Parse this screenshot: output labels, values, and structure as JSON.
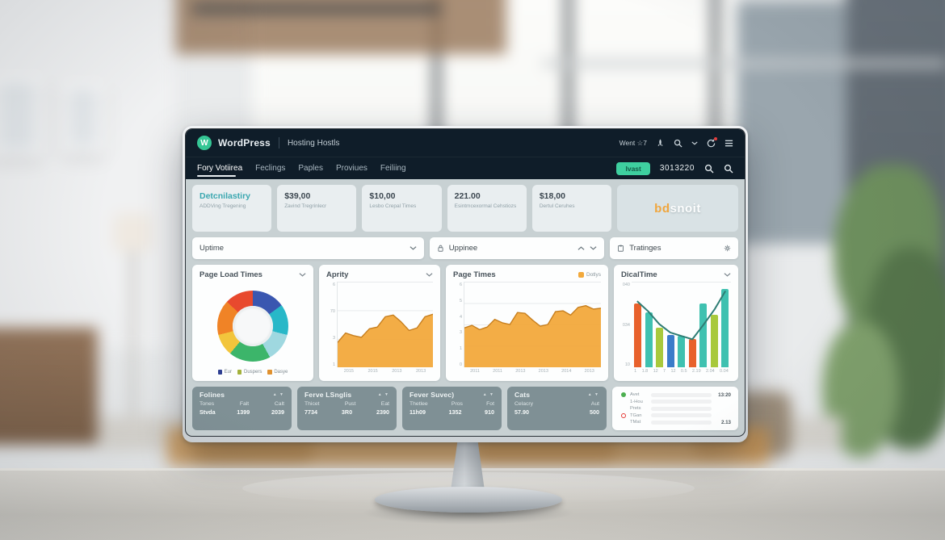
{
  "header": {
    "brand": "WordPress",
    "logo_glyph": "W",
    "product": "Hosting Hostls",
    "status": "Went ☆7"
  },
  "tabs": [
    {
      "label": "Fory Votiirea",
      "active": true
    },
    {
      "label": "Feclings",
      "active": false
    },
    {
      "label": "Paples",
      "active": false
    },
    {
      "label": "Proviues",
      "active": false
    },
    {
      "label": "Feiliing",
      "active": false
    }
  ],
  "toolbar": {
    "action_label": "Ivast",
    "account_number": "3013220"
  },
  "stats": [
    {
      "title": "Detcnilastiry",
      "subtitle": "ADDVing Tregening"
    },
    {
      "title": "$39,00",
      "subtitle": "Zavind Tregrinlecr"
    },
    {
      "title": "$10,00",
      "subtitle": "Lesbo Crepal Times"
    },
    {
      "title": "221.00",
      "subtitle": "Esintmcexormal Cehstiozs"
    },
    {
      "title": "$18,00",
      "subtitle": "Dertul Ceruhes"
    }
  ],
  "brand_card": {
    "highlight": "bd",
    "rest": "snoit"
  },
  "filters": [
    {
      "label": "Uptime"
    },
    {
      "label": "Uppinee"
    },
    {
      "label": "Tratinges"
    }
  ],
  "chart_data": [
    {
      "type": "pie",
      "title": "Page Load Times",
      "slices": [
        {
          "label": "Eur",
          "value": 15,
          "color": "#3a57b0"
        },
        {
          "label": "",
          "value": 14,
          "color": "#28b8c8"
        },
        {
          "label": "",
          "value": 13,
          "color": "#9fd8e0"
        },
        {
          "label": "Duspers",
          "value": 19,
          "color": "#3cb56a"
        },
        {
          "label": "",
          "value": 10,
          "color": "#f2c53c"
        },
        {
          "label": "Dasye",
          "value": 16,
          "color": "#f08326"
        },
        {
          "label": "",
          "value": 13,
          "color": "#e8492e"
        }
      ],
      "legend": [
        {
          "label": "Eur",
          "color": "#2e3f92"
        },
        {
          "label": "Duspers",
          "color": "#a3b13c"
        },
        {
          "label": "Dasye",
          "color": "#e0912f"
        }
      ]
    },
    {
      "type": "area",
      "title": "Aprity",
      "color": "#f2a93c",
      "stroke": "#c77f1f",
      "x": [
        "2015",
        "2015",
        "2013",
        "2013"
      ],
      "yticks": [
        "6",
        "70",
        "3",
        "1"
      ],
      "values": [
        29,
        40,
        37,
        35,
        45,
        47,
        59,
        61,
        53,
        43,
        46,
        59,
        62
      ],
      "ylim": [
        0,
        100
      ]
    },
    {
      "type": "area",
      "title": "Page Times",
      "legend_label": "Dotlys",
      "color": "#f2a93c",
      "stroke": "#c77f1f",
      "x": [
        "2011",
        "2011",
        "2013",
        "2013",
        "2014",
        "2013"
      ],
      "yticks": [
        "6",
        "5",
        "4",
        "3",
        "1",
        "0"
      ],
      "values": [
        46,
        49,
        44,
        47,
        56,
        52,
        50,
        64,
        63,
        55,
        48,
        50,
        65,
        66,
        61,
        70,
        72,
        68,
        69
      ],
      "ylim": [
        0,
        100
      ]
    },
    {
      "type": "bar",
      "title": "DicalTime",
      "yticks": [
        "040",
        "034",
        "10"
      ],
      "x": [
        "1",
        "1.8",
        "12",
        "7",
        "12",
        "0.5",
        "2.19",
        "2.04",
        "0.04"
      ],
      "bars": [
        {
          "value": 75,
          "color": "#e8612c"
        },
        {
          "value": 65,
          "color": "#3fc1b0"
        },
        {
          "value": 47,
          "color": "#a8c93c"
        },
        {
          "value": 38,
          "color": "#3a7cc9"
        },
        {
          "value": 37,
          "color": "#3fc1b0"
        },
        {
          "value": 33,
          "color": "#e8612c"
        },
        {
          "value": 75,
          "color": "#3fc1b0"
        },
        {
          "value": 62,
          "color": "#a8c93c"
        },
        {
          "value": 92,
          "color": "#3fc1b0"
        }
      ],
      "line": [
        78,
        66,
        51,
        41,
        37,
        33,
        50,
        68,
        90
      ],
      "line_color": "#2e7d74"
    }
  ],
  "tables": [
    {
      "title": "Folines",
      "columns": [
        "Tones",
        "Falt",
        "Calt"
      ],
      "row": [
        "Stvda",
        "1399",
        "2039"
      ]
    },
    {
      "title": "Ferve LSnglis",
      "columns": [
        "Thicet",
        "Pust",
        "Eat"
      ],
      "row": [
        "7734",
        "3R0",
        "2390"
      ]
    },
    {
      "title": "Fever Suvec)",
      "columns": [
        "Thetlee",
        "Pros",
        "Fot"
      ],
      "row": [
        "11h09",
        "1352",
        "910"
      ]
    },
    {
      "title": "Cats",
      "columns": [
        "Celacry",
        "Aut"
      ],
      "row": [
        "57.90",
        "500"
      ]
    }
  ],
  "ratings": {
    "rows": [
      {
        "icon": "green-dot",
        "label": "Avet",
        "value": "13:20",
        "bar": 22,
        "color": "#f09d2e",
        "striped": false
      },
      {
        "icon": "",
        "label": "1-Hou",
        "value": "",
        "bar": 6,
        "color": "#f09d2e",
        "striped": false
      },
      {
        "icon": "",
        "label": "Prets",
        "value": "",
        "bar": 66,
        "color": "#f09d2e",
        "striped": false
      },
      {
        "icon": "red-ring",
        "label": "TGan",
        "value": "",
        "bar": 34,
        "color": "#8bc34a",
        "striped": true
      },
      {
        "icon": "",
        "label": "TMat",
        "value": "2.13",
        "bar": 21,
        "color": "#f09d2e",
        "striped": false
      }
    ]
  },
  "colors": {
    "accent_green": "#3ecf9f",
    "header_navy": "#0f1d29",
    "chart_orange": "#f2a93c",
    "body_bg": "#c8d1d3"
  }
}
